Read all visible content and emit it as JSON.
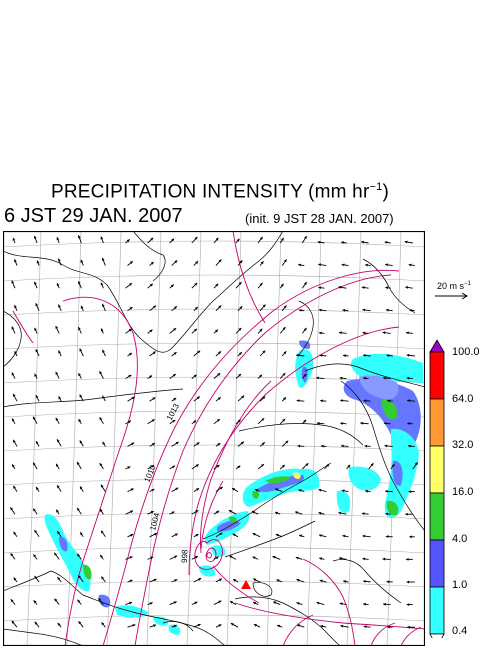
{
  "header": {
    "title": "PRECIPITATION INTENSITY (mm hr",
    "title_sup": "−1",
    "title_end": ")",
    "datetime": "6 JST 29 JAN. 2007",
    "init": "(init. 9 JST 28 JAN. 2007)"
  },
  "reference_vector": {
    "label": "20 m s",
    "label_sup": "−1"
  },
  "colorbar": {
    "levels": [
      "100.0",
      "64.0",
      "32.0",
      "16.0",
      "4.0",
      "1.0",
      "0.4"
    ],
    "colors": [
      "#9b00c8",
      "#ff0000",
      "#ff9933",
      "#ffff66",
      "#33cc33",
      "#5555ff",
      "#33ffff"
    ]
  },
  "map": {
    "isobar_labels": [
      "1013",
      "1010",
      "1004",
      "998"
    ],
    "colors": {
      "isobar": "#c8006e",
      "coast": "#000000",
      "grid": "#aaaaaa",
      "border": "#000000",
      "marker": "#ff0000"
    }
  }
}
